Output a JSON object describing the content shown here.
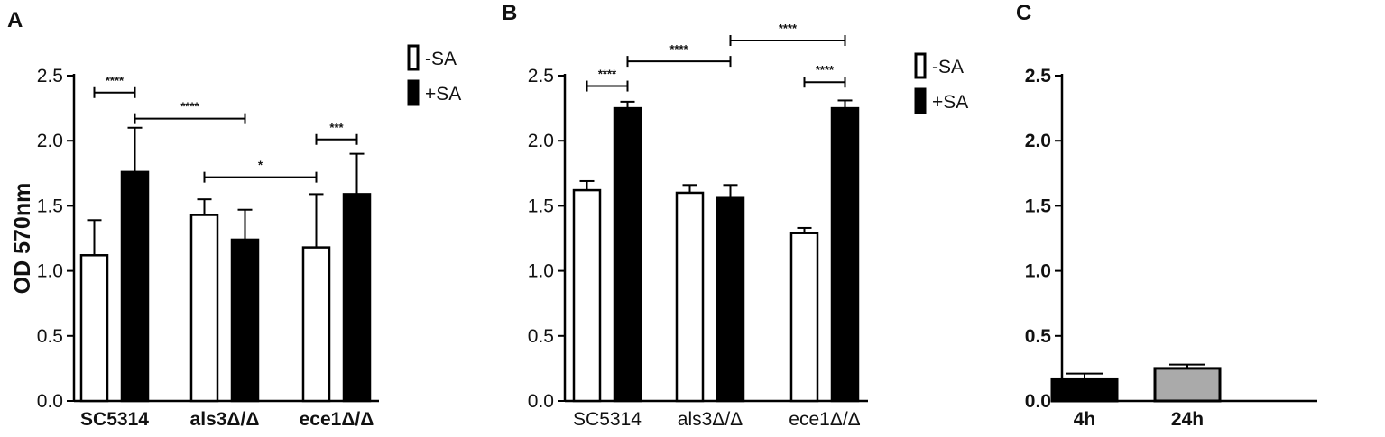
{
  "chart_data": [
    {
      "panel": "A",
      "type": "bar",
      "ylabel": "OD 570nm",
      "ylim": [
        0,
        2.5
      ],
      "yticks": [
        "0.0",
        "0.5",
        "1.0",
        "1.5",
        "2.0",
        "2.5"
      ],
      "categories": [
        "SC5314",
        "als3Δ/Δ",
        "ece1Δ/Δ"
      ],
      "series": [
        {
          "name": "-SA",
          "fill": "#ffffff",
          "values": [
            1.12,
            1.43,
            1.18
          ],
          "errors": [
            0.27,
            0.12,
            0.41
          ]
        },
        {
          "name": "+SA",
          "fill": "#000000",
          "values": [
            1.76,
            1.24,
            1.59
          ],
          "errors": [
            0.34,
            0.23,
            0.31
          ]
        }
      ],
      "significance": [
        {
          "from": [
            0,
            0
          ],
          "to": [
            0,
            1
          ],
          "y": 2.37,
          "label": "****"
        },
        {
          "from": [
            0,
            1
          ],
          "to": [
            1,
            1
          ],
          "y": 2.17,
          "label": "****"
        },
        {
          "from": [
            1,
            0
          ],
          "to": [
            2,
            0
          ],
          "y": 1.72,
          "label": "*"
        },
        {
          "from": [
            2,
            0
          ],
          "to": [
            2,
            1
          ],
          "y": 2.01,
          "label": "***"
        }
      ]
    },
    {
      "panel": "B",
      "type": "bar",
      "ylim": [
        0,
        2.5
      ],
      "yticks": [
        "0.0",
        "0.5",
        "1.0",
        "1.5",
        "2.0",
        "2.5"
      ],
      "categories": [
        "SC5314",
        "als3Δ/Δ",
        "ece1Δ/Δ"
      ],
      "series": [
        {
          "name": "-SA",
          "fill": "#ffffff",
          "values": [
            1.62,
            1.6,
            1.29
          ],
          "errors": [
            0.07,
            0.06,
            0.04
          ]
        },
        {
          "name": "+SA",
          "fill": "#000000",
          "values": [
            2.25,
            1.56,
            2.25
          ],
          "errors": [
            0.05,
            0.1,
            0.06
          ]
        }
      ],
      "significance": [
        {
          "from": [
            0,
            0
          ],
          "to": [
            0,
            1
          ],
          "y": 2.42,
          "label": "****"
        },
        {
          "from": [
            0,
            1
          ],
          "to": [
            1,
            1
          ],
          "y": 2.61,
          "label": "****"
        },
        {
          "from": [
            1,
            1
          ],
          "to": [
            2,
            1
          ],
          "y": 2.77,
          "label": "****"
        },
        {
          "from": [
            2,
            0
          ],
          "to": [
            2,
            1
          ],
          "y": 2.45,
          "label": "****"
        }
      ]
    },
    {
      "panel": "C",
      "type": "bar",
      "ylim": [
        0,
        2.5
      ],
      "yticks": [
        "0.0",
        "0.5",
        "1.0",
        "1.5",
        "2.0",
        "2.5"
      ],
      "categories": [
        "4h",
        "24h"
      ],
      "values": [
        0.17,
        0.25
      ],
      "errors": [
        0.04,
        0.03
      ],
      "fills": [
        "#000000",
        "#aaaaaa"
      ]
    }
  ]
}
